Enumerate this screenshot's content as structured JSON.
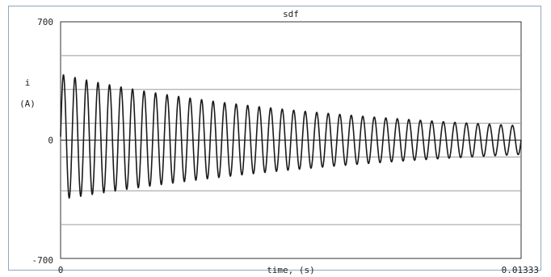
{
  "chart_data": {
    "type": "line",
    "title": "sdf",
    "ylabel": "i",
    "ylabel_unit": "(A)",
    "xlabel": "time, (s)",
    "xlim": [
      0,
      0.01333
    ],
    "ylim": [
      -700,
      700
    ],
    "x_ticks": [
      "0",
      "0.01333"
    ],
    "y_ticks": [
      "700",
      "0",
      "-700"
    ],
    "grid": true,
    "line_color": "#1a1a1a",
    "series": [
      {
        "peak_amplitude_start": 370,
        "peak_amplitude_end": 85,
        "cycles": 40,
        "initial_dc_offset": 20
      }
    ]
  }
}
